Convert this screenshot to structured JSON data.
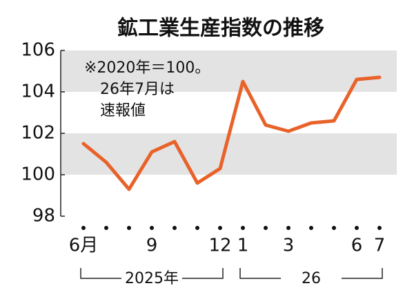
{
  "chart_data": {
    "type": "line",
    "title": "鉱工業生産指数の推移",
    "annotation": [
      "※2020年＝100。",
      "26年7月は",
      "速報値"
    ],
    "categories": [
      "6月",
      null,
      null,
      "9",
      null,
      null,
      "12",
      "1",
      null,
      "3",
      null,
      null,
      "6",
      "7"
    ],
    "period_labels": [
      "2025年",
      "26"
    ],
    "series": [
      {
        "name": "鉱工業生産指数",
        "color": "#e8622a",
        "values": [
          101.5,
          100.6,
          99.3,
          101.1,
          101.6,
          99.6,
          100.3,
          104.5,
          102.4,
          102.1,
          102.5,
          102.6,
          104.6,
          104.7
        ]
      }
    ],
    "ylim": [
      98,
      106
    ],
    "yticks": [
      98,
      100,
      102,
      104,
      106
    ],
    "grid_bands": true,
    "band_color": "#e3e3e3"
  }
}
